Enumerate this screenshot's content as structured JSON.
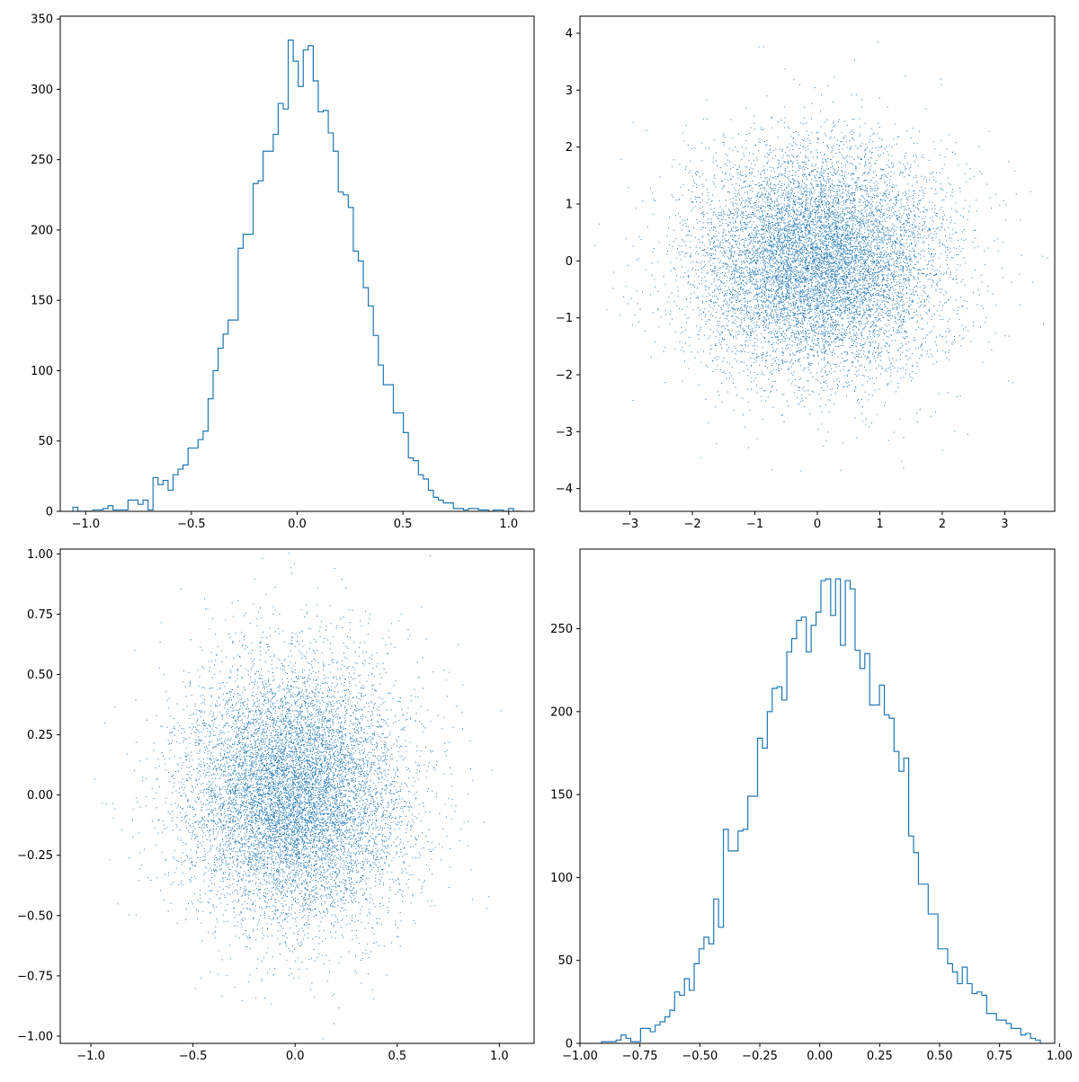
{
  "chart_data": [
    {
      "type": "histogram",
      "histtype": "step",
      "title": "",
      "xlabel": "",
      "ylabel": "",
      "xlim": [
        -1.12,
        1.12
      ],
      "ylim": [
        0,
        352
      ],
      "x_ticks": [
        -1.0,
        -0.5,
        0.0,
        0.5,
        1.0
      ],
      "x_tick_labels": [
        "−1.0",
        "−0.5",
        "0.0",
        "0.5",
        "1.0"
      ],
      "y_ticks": [
        0,
        50,
        100,
        150,
        200,
        250,
        300,
        350
      ],
      "y_tick_labels": [
        "0",
        "50",
        "100",
        "150",
        "200",
        "250",
        "300",
        "350"
      ],
      "bin_range": [
        -1.06,
        1.07
      ],
      "values": [
        3,
        0,
        0,
        0,
        1,
        1,
        2,
        4,
        1,
        1,
        1,
        8,
        8,
        5,
        8,
        1,
        24,
        19,
        22,
        15,
        26,
        30,
        33,
        45,
        45,
        51,
        57,
        80,
        100,
        116,
        126,
        136,
        136,
        187,
        197,
        197,
        233,
        235,
        256,
        256,
        268,
        290,
        286,
        335,
        320,
        302,
        328,
        331,
        306,
        284,
        285,
        269,
        256,
        227,
        225,
        216,
        185,
        178,
        159,
        146,
        125,
        104,
        90,
        90,
        70,
        70,
        56,
        38,
        36,
        26,
        23,
        15,
        10,
        8,
        6,
        6,
        2,
        2,
        1,
        2,
        2,
        1,
        1,
        0,
        1,
        1,
        0,
        2,
        0,
        0
      ]
    },
    {
      "type": "scatter",
      "title": "",
      "xlabel": "",
      "ylabel": "",
      "xlim": [
        -3.8,
        3.8
      ],
      "ylim": [
        -4.4,
        4.3
      ],
      "x_ticks": [
        -3,
        -2,
        -1,
        0,
        1,
        2,
        3
      ],
      "x_tick_labels": [
        "−3",
        "−2",
        "−1",
        "0",
        "1",
        "2",
        "3"
      ],
      "y_ticks": [
        -4,
        -3,
        -2,
        -1,
        0,
        1,
        2,
        3,
        4
      ],
      "y_tick_labels": [
        "−4",
        "−3",
        "−2",
        "−1",
        "0",
        "1",
        "2",
        "3",
        "4"
      ],
      "n_points": 10000,
      "x_mean": 0.0,
      "x_std": 1.0,
      "y_mean": 0.0,
      "y_std": 1.0
    },
    {
      "type": "scatter",
      "title": "",
      "xlabel": "",
      "ylabel": "",
      "xlim": [
        -1.15,
        1.17
      ],
      "ylim": [
        -1.03,
        1.02
      ],
      "x_ticks": [
        -1.0,
        -0.5,
        0.0,
        0.5,
        1.0
      ],
      "x_tick_labels": [
        "−1.0",
        "−0.5",
        "0.0",
        "0.5",
        "1.0"
      ],
      "y_ticks": [
        -1.0,
        -0.75,
        -0.5,
        -0.25,
        0.0,
        0.25,
        0.5,
        0.75,
        1.0
      ],
      "y_tick_labels": [
        "−1.00",
        "−0.75",
        "−0.50",
        "−0.25",
        "0.00",
        "0.25",
        "0.50",
        "0.75",
        "1.00"
      ],
      "n_points": 10000,
      "x_mean": 0.0,
      "x_std": 0.27,
      "y_mean": 0.0,
      "y_std": 0.27
    },
    {
      "type": "histogram",
      "histtype": "step",
      "title": "",
      "xlabel": "",
      "ylabel": "",
      "xlim": [
        -1.0,
        0.98
      ],
      "ylim": [
        0,
        298
      ],
      "x_ticks": [
        -1.0,
        -0.75,
        -0.5,
        -0.25,
        0.0,
        0.25,
        0.5,
        0.75,
        1.0
      ],
      "x_tick_labels": [
        "−1.00",
        "−0.75",
        "−0.50",
        "−0.25",
        "0.00",
        "0.25",
        "0.50",
        "0.75",
        "1.00"
      ],
      "y_ticks": [
        0,
        50,
        100,
        150,
        200,
        250
      ],
      "y_tick_labels": [
        "0",
        "50",
        "100",
        "150",
        "200",
        "250"
      ],
      "bin_range": [
        -0.91,
        0.92
      ],
      "values": [
        1,
        1,
        1,
        2,
        5,
        3,
        1,
        1,
        9,
        9,
        7,
        11,
        13,
        16,
        20,
        31,
        29,
        39,
        32,
        48,
        57,
        64,
        60,
        87,
        70,
        129,
        116,
        116,
        128,
        129,
        149,
        149,
        184,
        178,
        200,
        214,
        215,
        207,
        236,
        244,
        255,
        257,
        236,
        252,
        260,
        279,
        280,
        258,
        280,
        240,
        279,
        274,
        237,
        226,
        235,
        204,
        204,
        216,
        198,
        196,
        176,
        164,
        172,
        125,
        115,
        96,
        96,
        78,
        78,
        57,
        57,
        48,
        43,
        36,
        46,
        36,
        30,
        31,
        29,
        18,
        18,
        14,
        14,
        12,
        9,
        9,
        5,
        6,
        3,
        2
      ]
    }
  ],
  "colors": {
    "series": "#1f77b4",
    "axes": "#000000",
    "background": "#ffffff"
  }
}
